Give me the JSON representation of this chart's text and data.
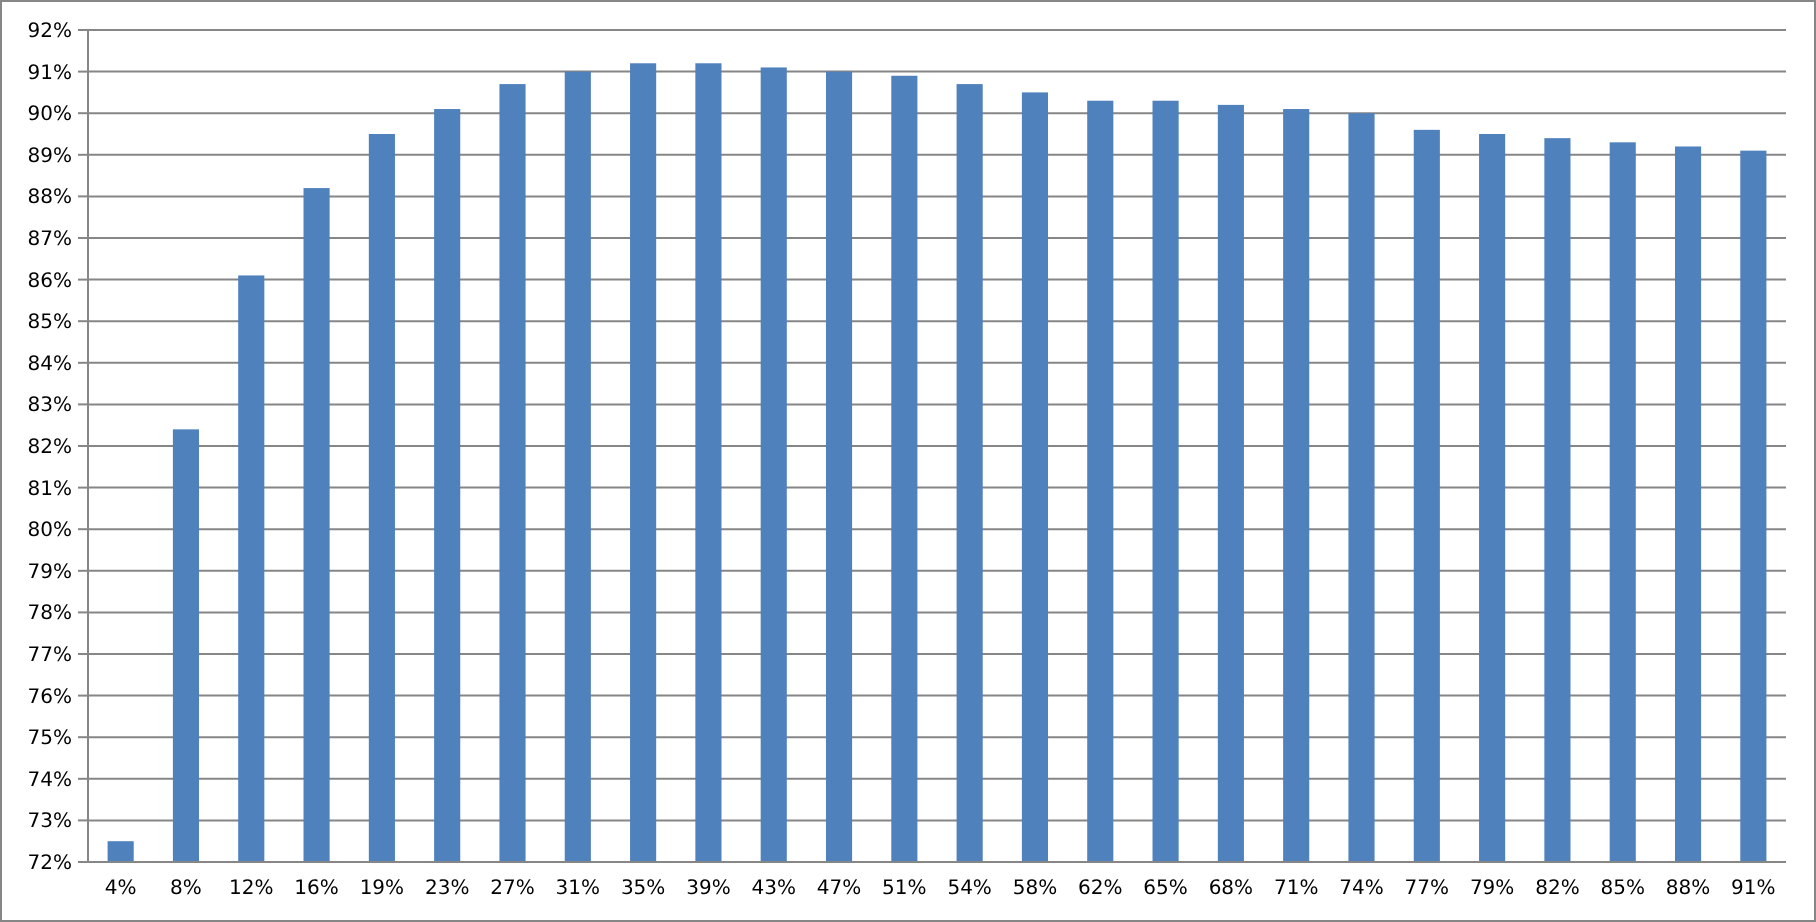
{
  "chart_data": {
    "type": "bar",
    "categories": [
      "4%",
      "8%",
      "12%",
      "16%",
      "19%",
      "23%",
      "27%",
      "31%",
      "35%",
      "39%",
      "43%",
      "47%",
      "51%",
      "54%",
      "58%",
      "62%",
      "65%",
      "68%",
      "71%",
      "74%",
      "77%",
      "79%",
      "82%",
      "85%",
      "88%",
      "91%"
    ],
    "values": [
      72.5,
      82.4,
      86.1,
      88.2,
      89.5,
      90.1,
      90.7,
      91.0,
      91.2,
      91.2,
      91.1,
      91.0,
      90.9,
      90.7,
      90.5,
      90.3,
      90.3,
      90.2,
      90.1,
      90.0,
      89.6,
      89.5,
      89.4,
      89.3,
      89.2,
      89.1
    ],
    "color": "#4f81bd",
    "ylim": [
      72,
      92
    ],
    "yticks": [
      {
        "value": 72,
        "label": "72%"
      },
      {
        "value": 73,
        "label": "73%"
      },
      {
        "value": 74,
        "label": "74%"
      },
      {
        "value": 75,
        "label": "75%"
      },
      {
        "value": 76,
        "label": "76%"
      },
      {
        "value": 77,
        "label": "77%"
      },
      {
        "value": 78,
        "label": "78%"
      },
      {
        "value": 79,
        "label": "79%"
      },
      {
        "value": 80,
        "label": "80%"
      },
      {
        "value": 81,
        "label": "81%"
      },
      {
        "value": 82,
        "label": "82%"
      },
      {
        "value": 83,
        "label": "83%"
      },
      {
        "value": 84,
        "label": "84%"
      },
      {
        "value": 85,
        "label": "85%"
      },
      {
        "value": 86,
        "label": "86%"
      },
      {
        "value": 87,
        "label": "87%"
      },
      {
        "value": 88,
        "label": "88%"
      },
      {
        "value": 89,
        "label": "89%"
      },
      {
        "value": 90,
        "label": "90%"
      },
      {
        "value": 91,
        "label": "91%"
      },
      {
        "value": 92,
        "label": "92%"
      }
    ],
    "grid": "y"
  }
}
